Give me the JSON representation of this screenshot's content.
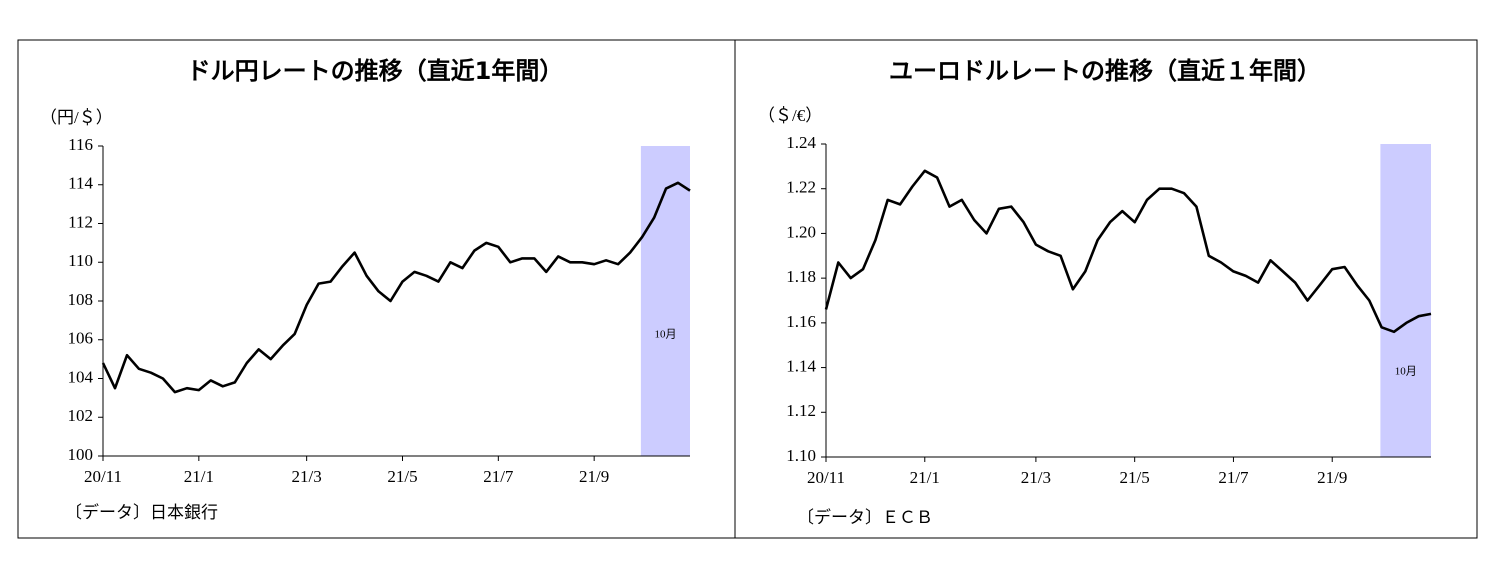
{
  "chart_data": [
    {
      "type": "line",
      "title": "ドル円レートの推移（直近1年間）",
      "y_label": "（円/＄）",
      "source": "〔データ〕日本銀行",
      "categories": [
        "20/11",
        null,
        null,
        null,
        null,
        null,
        null,
        null,
        "21/1",
        null,
        null,
        null,
        null,
        null,
        null,
        null,
        null,
        "21/3",
        null,
        null,
        null,
        null,
        null,
        null,
        null,
        "21/5",
        null,
        null,
        null,
        null,
        null,
        null,
        null,
        "21/7",
        null,
        null,
        null,
        null,
        null,
        null,
        null,
        "21/9",
        null,
        null,
        null,
        null,
        null,
        null,
        null,
        null
      ],
      "series": [
        {
          "name": "ドル円",
          "color": "#000000",
          "values": [
            104.8,
            103.5,
            105.2,
            104.5,
            104.3,
            104.0,
            103.3,
            103.5,
            103.4,
            103.9,
            103.6,
            103.8,
            104.8,
            105.5,
            105.0,
            105.7,
            106.3,
            107.8,
            108.9,
            109.0,
            109.8,
            110.5,
            109.3,
            108.5,
            108.0,
            109.0,
            109.5,
            109.3,
            109.0,
            110.0,
            109.7,
            110.6,
            111.0,
            110.8,
            110.0,
            110.2,
            110.2,
            109.5,
            110.3,
            110.0,
            110.0,
            109.9,
            110.1,
            109.9,
            110.5,
            111.3,
            112.3,
            113.8,
            114.1,
            113.7
          ]
        }
      ],
      "ylim": [
        100,
        116
      ],
      "yticks": [
        100,
        102,
        104,
        106,
        108,
        110,
        112,
        114,
        116
      ],
      "highlight_label": "10月",
      "highlight_color": "#ccccff"
    },
    {
      "type": "line",
      "title": "ユーロドルレートの推移（直近１年間）",
      "y_label": "（＄/€）",
      "source": "〔データ〕ＥＣＢ",
      "categories": [
        "20/11",
        null,
        null,
        null,
        null,
        null,
        null,
        null,
        "21/1",
        null,
        null,
        null,
        null,
        null,
        null,
        null,
        null,
        "21/3",
        null,
        null,
        null,
        null,
        null,
        null,
        null,
        "21/5",
        null,
        null,
        null,
        null,
        null,
        null,
        null,
        "21/7",
        null,
        null,
        null,
        null,
        null,
        null,
        null,
        "21/9",
        null,
        null,
        null,
        null,
        null,
        null,
        null,
        null
      ],
      "series": [
        {
          "name": "ユーロドル",
          "color": "#000000",
          "values": [
            1.166,
            1.187,
            1.18,
            1.184,
            1.197,
            1.215,
            1.213,
            1.221,
            1.228,
            1.225,
            1.212,
            1.215,
            1.206,
            1.2,
            1.211,
            1.212,
            1.205,
            1.195,
            1.192,
            1.19,
            1.175,
            1.183,
            1.197,
            1.205,
            1.21,
            1.205,
            1.215,
            1.22,
            1.22,
            1.218,
            1.212,
            1.19,
            1.187,
            1.183,
            1.181,
            1.178,
            1.188,
            1.183,
            1.178,
            1.17,
            1.177,
            1.184,
            1.185,
            1.177,
            1.17,
            1.158,
            1.156,
            1.16,
            1.163,
            1.164
          ]
        }
      ],
      "ylim": [
        1.1,
        1.24
      ],
      "yticks": [
        {
          "value": 1.1,
          "label": "1.10"
        },
        {
          "value": 1.12,
          "label": "1.12"
        },
        {
          "value": 1.14,
          "label": "1.14"
        },
        {
          "value": 1.16,
          "label": "1.16"
        },
        {
          "value": 1.18,
          "label": "1.18"
        },
        {
          "value": 1.2,
          "label": "1.20"
        },
        {
          "value": 1.22,
          "label": "1.22"
        },
        {
          "value": 1.24,
          "label": "1.24"
        }
      ],
      "highlight_label": "10月",
      "highlight_color": "#ccccff"
    }
  ]
}
